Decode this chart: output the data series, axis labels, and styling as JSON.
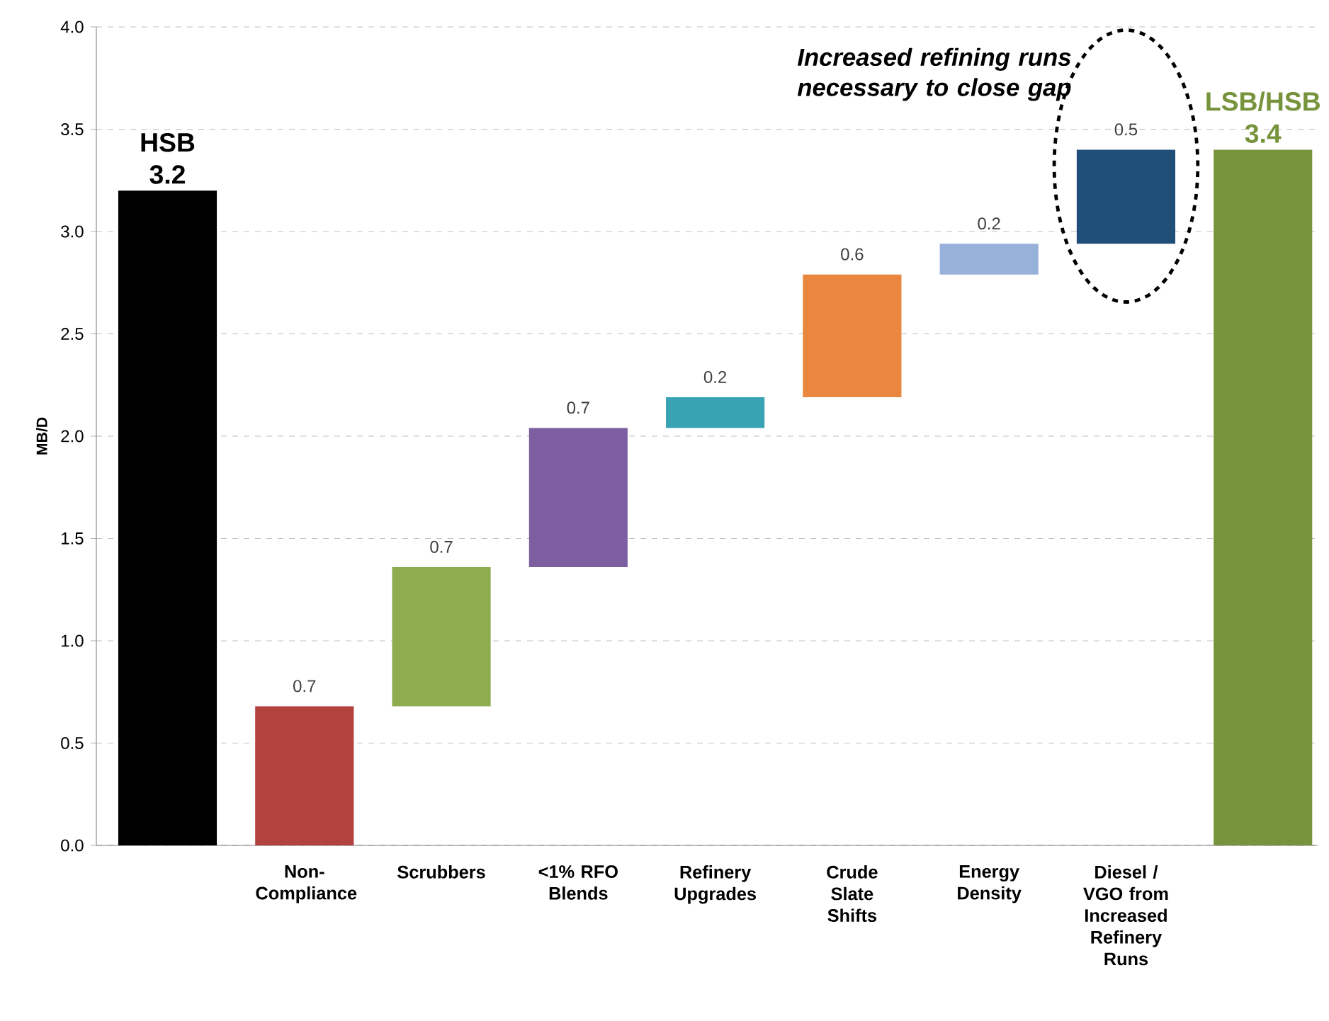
{
  "chart_data": {
    "type": "bar",
    "ylabel": "MB/D",
    "categories": [
      null,
      "Non-Compliance",
      "Scrubbers",
      "<1% RFO Blends",
      "Refinery Upgrades",
      "Crude Slate Shifts",
      "Energy Density",
      "Diesel / VGO from Increased Refinery Runs",
      null
    ],
    "values": [
      3.2,
      0.68,
      0.68,
      0.68,
      0.15,
      0.6,
      0.15,
      0.46,
      3.4
    ],
    "base": [
      0,
      0,
      0.68,
      1.36,
      2.04,
      2.19,
      2.79,
      2.94,
      0
    ],
    "value_labels": [
      "3.2",
      "0.7",
      "0.7",
      "0.7",
      "0.2",
      "0.6",
      "0.2",
      "0.5",
      "3.4"
    ],
    "colors": [
      "#000000",
      "#b3413e",
      "#8fac4e",
      "#7d5ea0",
      "#38a3b3",
      "#e9873e",
      "#97b1d9",
      "#1f4e79",
      "#77933c"
    ],
    "annotations": [
      "HSB",
      "LSB/HSB",
      "Increased refining runs necessary to close gap"
    ],
    "ylim": [
      0,
      4
    ],
    "yticks": [
      {
        "value": 0,
        "label": "0.0"
      },
      {
        "value": 0.5,
        "label": "0.5"
      },
      {
        "value": 1,
        "label": "1.0"
      },
      {
        "value": 1.5,
        "label": "1.5"
      },
      {
        "value": 2,
        "label": "2.0"
      },
      {
        "value": 2.5,
        "label": "2.5"
      },
      {
        "value": 3,
        "label": "3.0"
      },
      {
        "value": 3.5,
        "label": "3.5"
      },
      {
        "value": 4,
        "label": "4.0"
      }
    ],
    "grid": "y"
  }
}
